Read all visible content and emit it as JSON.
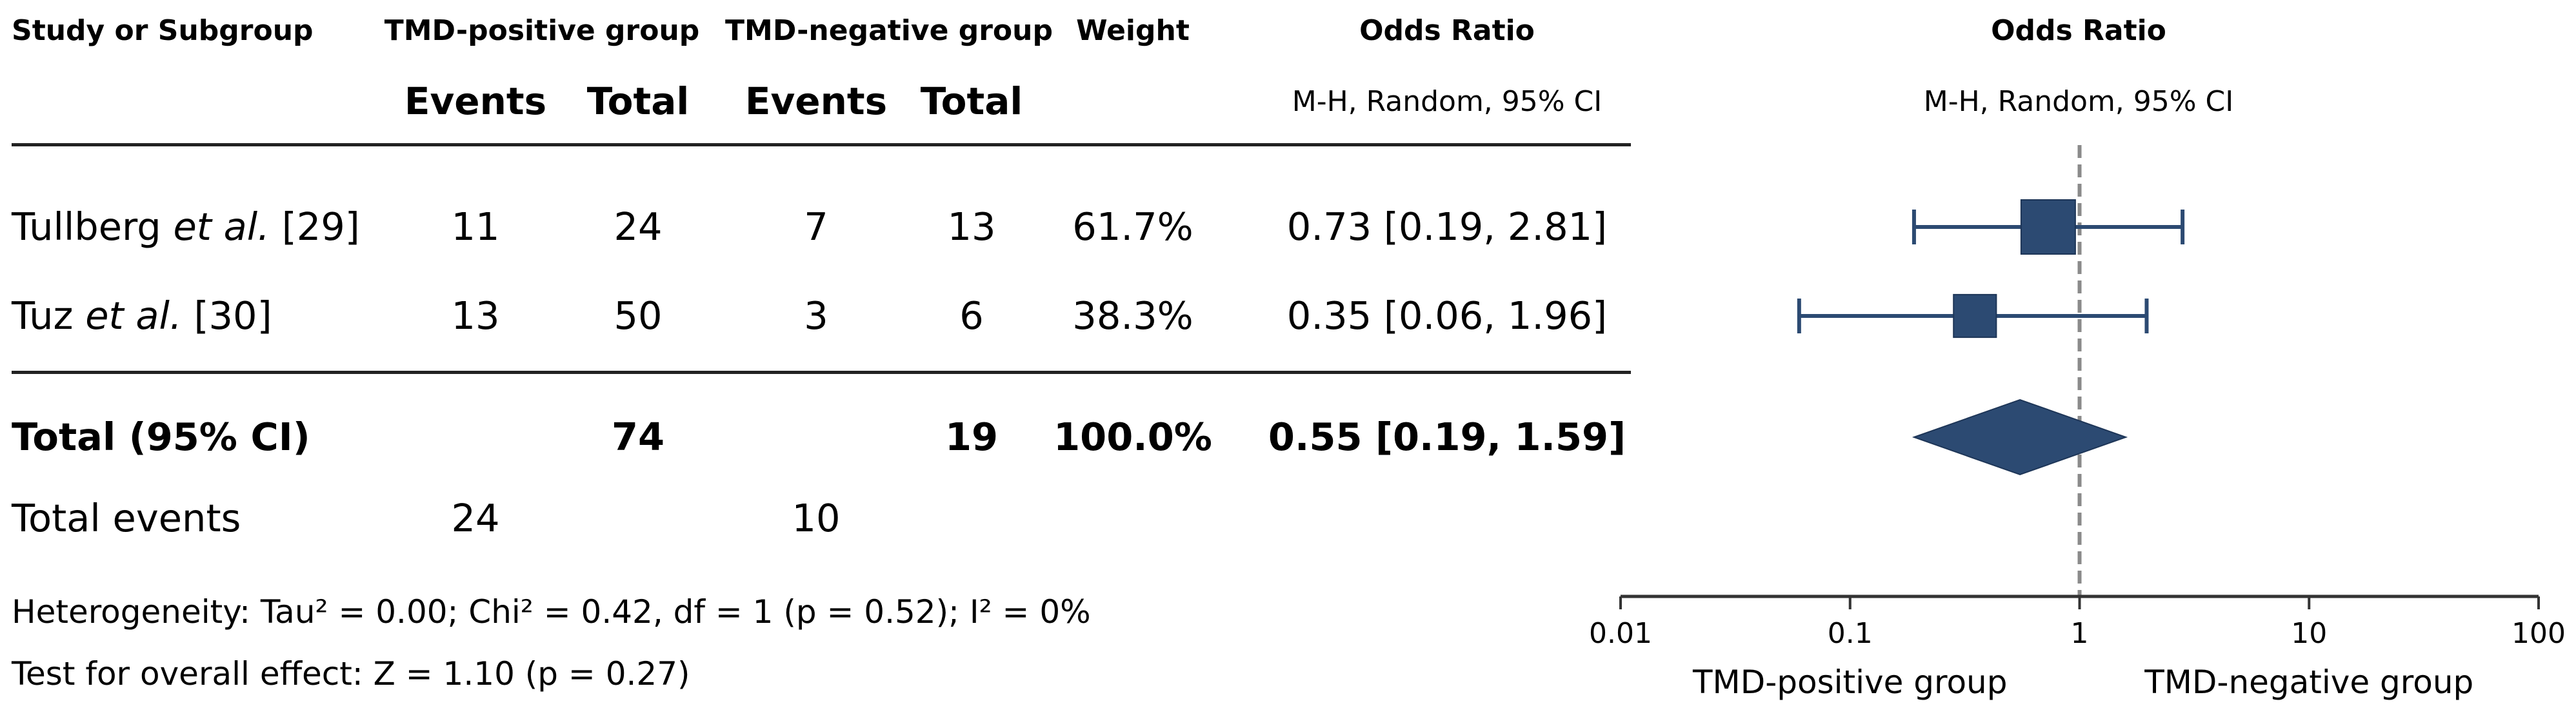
{
  "table": {
    "headers": {
      "study": "Study or Subgroup",
      "group1": "TMD-positive group",
      "group2": "TMD-negative group",
      "weight": "Weight",
      "or": "Odds Ratio"
    },
    "subheaders": {
      "events1": "Events",
      "total1": "Total",
      "events2": "Events",
      "total2": "Total",
      "method": "M-H, Random, 95% CI"
    },
    "rows": [
      {
        "author": "Tullberg",
        "etal": "et al.",
        "ref": "[29]",
        "events1": "11",
        "total1": "24",
        "events2": "7",
        "total2": "13",
        "weight": "61.7%",
        "or_text": "0.73 [0.19, 2.81]"
      },
      {
        "author": "Tuz",
        "etal": "et al.",
        "ref": "[30]",
        "events1": "13",
        "total1": "50",
        "events2": "3",
        "total2": "6",
        "weight": "38.3%",
        "or_text": "0.35 [0.06, 1.96]"
      }
    ],
    "total": {
      "label": "Total (95% CI)",
      "total1": "74",
      "total2": "19",
      "weight": "100.0%",
      "or_text": "0.55 [0.19, 1.59]"
    },
    "total_events": {
      "label": "Total events",
      "events1": "24",
      "events2": "10"
    },
    "heterogeneity": "Heterogeneity: Tau² = 0.00; Chi² = 0.42, df = 1 (p = 0.52); I² = 0%",
    "overall_effect": "Test for overall effect: Z = 1.10 (p = 0.27)"
  },
  "chart_data": {
    "type": "forest",
    "title": "Odds Ratio",
    "subtitle": "M-H, Random, 95% CI",
    "xscale": "log",
    "xlim": [
      0.01,
      100
    ],
    "xticks": [
      0.01,
      0.1,
      1,
      10,
      100
    ],
    "xtick_labels": [
      "0.01",
      "0.1",
      "1",
      "10",
      "100"
    ],
    "reference_line": 1,
    "favours_left": "TMD-positive group",
    "favours_right": "TMD-negative group",
    "color": "#2c4a72",
    "studies": [
      {
        "name": "Tullberg et al. [29]",
        "or": 0.73,
        "ci": [
          0.19,
          2.81
        ],
        "weight": 61.7
      },
      {
        "name": "Tuz et al. [30]",
        "or": 0.35,
        "ci": [
          0.06,
          1.96
        ],
        "weight": 38.3
      }
    ],
    "pooled": {
      "or": 0.55,
      "ci": [
        0.19,
        1.59
      ]
    }
  }
}
